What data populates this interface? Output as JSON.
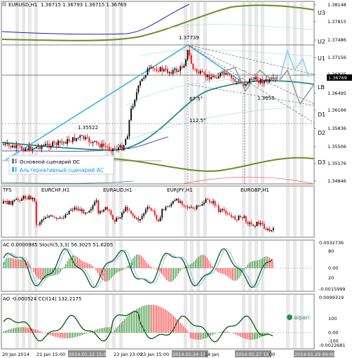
{
  "main": {
    "symbol_header": "EURUSD,H1",
    "ohlc": "1.36715 1.36793 1.36715 1.36769",
    "levels": {
      "u3": "U3",
      "u2": "U2",
      "u1": "U1",
      "lb": "LB",
      "d1": "D1",
      "d2": "D2",
      "d3": "D3"
    },
    "annotations": {
      "top": "1.37739",
      "left": "1.35522",
      "mid_low": "1.3653",
      "fib_a": "67.5°",
      "fib_b": "112.5°"
    },
    "legend": {
      "main": "Основной сценарий ОС",
      "alt": "Альтернативный сценарий АС"
    },
    "price_ticks": [
      "1.38148",
      "1.37815",
      "1.37486",
      "1.37156",
      "1.36825",
      "1.36495",
      "1.36166",
      "1.35836",
      "1.35506",
      "1.35176",
      "1.34846"
    ],
    "current_price": "1.36769",
    "colors": {
      "up": "#000000",
      "down": "#ff0000",
      "ma_green": "#6b8e23",
      "channel": "#1e8c82",
      "trend": "#38b4e6",
      "envelope": "#1f1fb4",
      "alt_line": "#87cefa"
    }
  },
  "tfs": {
    "label": "TFS",
    "sub_titles": [
      "EURCHF,H1",
      "EURAUD,H1",
      "EURJPY,H1",
      "EURGBP,H1"
    ]
  },
  "ac": {
    "header": "AC 0.0000985  Stoch(5,3,3) 56.3025 51.6205",
    "ticks": [
      "0.0032736",
      "80",
      "0.00",
      "20",
      "-0.0015999"
    ]
  },
  "ao": {
    "header": "AO -0.000524  CCI(14) 132.2175",
    "ticks": [
      "0.0099319",
      "100",
      "0.00",
      "-100",
      "-0.0022681"
    ],
    "watermark": "alpari"
  },
  "time_axis": {
    "labels": [
      "20 Jan 2014",
      "21 Jan 15:00",
      "2014.01.22 15:00",
      "23 Jan 23:00",
      "23 Jan 15:00",
      "2014.01.24 13:00",
      "24 Jan",
      "2014.01.27 15:00",
      "00",
      "2014.01.29 00:00"
    ],
    "highlighted": [
      2,
      5,
      7,
      9
    ]
  }
}
